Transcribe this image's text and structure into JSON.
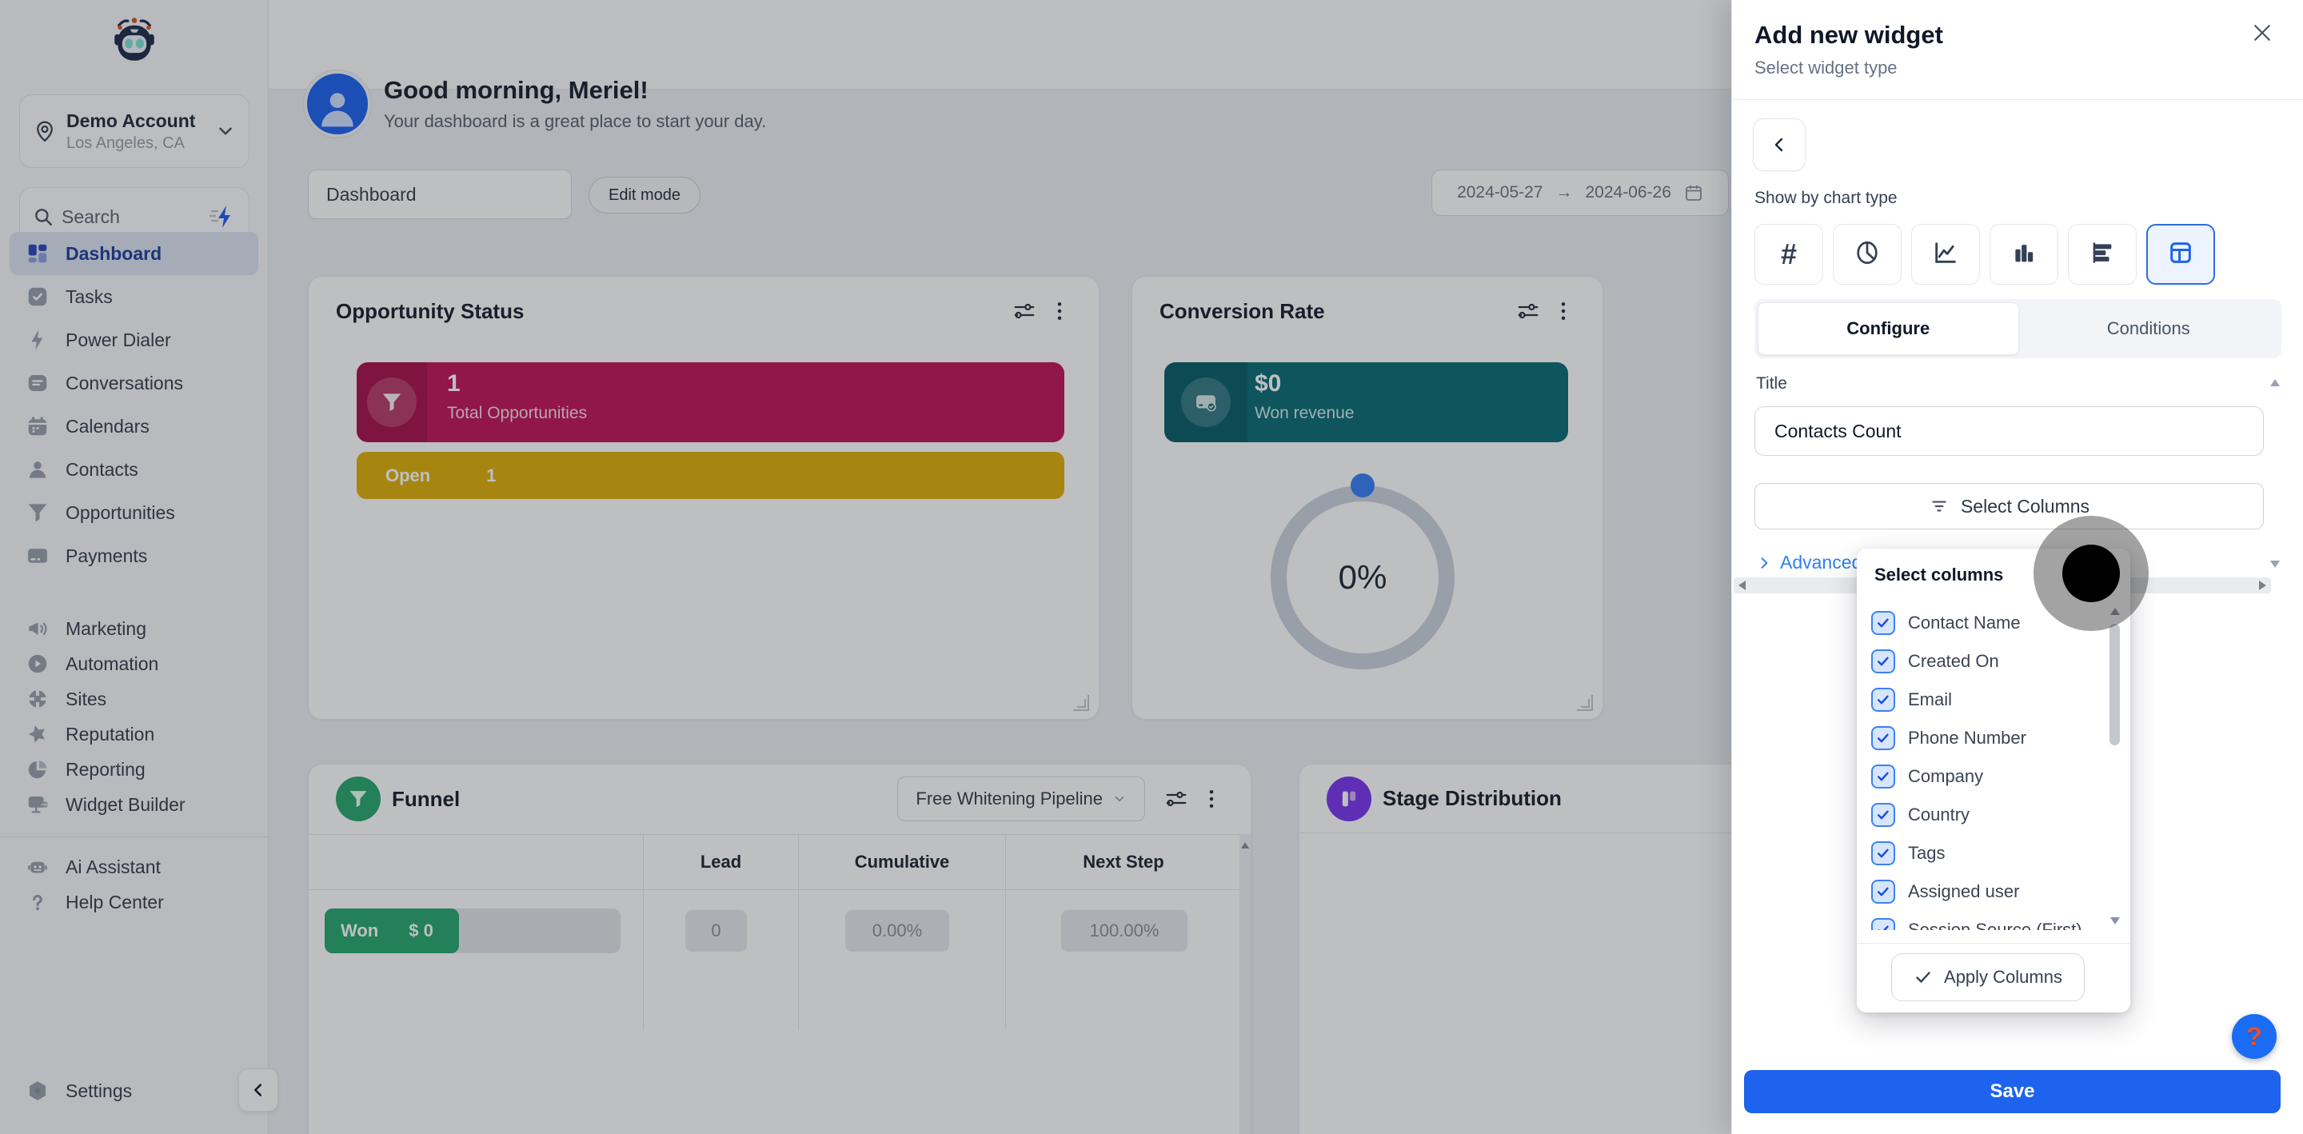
{
  "sidebar": {
    "account": {
      "name": "Demo Account",
      "location": "Los Angeles, CA"
    },
    "search_placeholder": "Search",
    "menu_primary": [
      {
        "icon": "dashboard-icon",
        "label": "Dashboard",
        "active": true
      },
      {
        "icon": "tasks-icon",
        "label": "Tasks"
      },
      {
        "icon": "power-dialer-icon",
        "label": "Power Dialer"
      },
      {
        "icon": "conversations-icon",
        "label": "Conversations"
      },
      {
        "icon": "calendars-icon",
        "label": "Calendars"
      },
      {
        "icon": "contacts-icon",
        "label": "Contacts"
      },
      {
        "icon": "opportunities-icon",
        "label": "Opportunities"
      },
      {
        "icon": "payments-icon",
        "label": "Payments"
      }
    ],
    "menu_secondary": [
      {
        "icon": "marketing-icon",
        "label": "Marketing"
      },
      {
        "icon": "automation-icon",
        "label": "Automation"
      },
      {
        "icon": "sites-icon",
        "label": "Sites"
      },
      {
        "icon": "reputation-icon",
        "label": "Reputation"
      },
      {
        "icon": "reporting-icon",
        "label": "Reporting"
      },
      {
        "icon": "widget-builder-icon",
        "label": "Widget Builder"
      }
    ],
    "menu_tertiary": [
      {
        "icon": "ai-assistant-icon",
        "label": "Ai Assistant"
      },
      {
        "icon": "help-center-icon",
        "label": "Help Center"
      }
    ],
    "settings_label": "Settings"
  },
  "header": {
    "greeting": "Good morning, Meriel!",
    "subtitle": "Your dashboard is a great place to start your day.",
    "dashboard_select": "Dashboard",
    "edit_mode_label": "Edit mode",
    "date_start": "2024-05-27",
    "date_arrow": "→",
    "date_end": "2024-06-26"
  },
  "widgets": {
    "opportunity_status": {
      "title": "Opportunity Status",
      "total_value": "1",
      "total_label": "Total Opportunities",
      "open_label": "Open",
      "open_value": "1"
    },
    "conversion_rate": {
      "title": "Conversion Rate",
      "revenue_value": "$0",
      "revenue_label": "Won revenue",
      "gauge_value": "0%"
    },
    "funnel": {
      "title": "Funnel",
      "pipeline_select": "Free Whitening Pipeline",
      "columns": [
        "Lead",
        "Cumulative",
        "Next Step"
      ],
      "row": {
        "stage": "Won",
        "amount": "$ 0",
        "lead": "0",
        "cumulative": "0.00%",
        "next_step": "100.00%"
      }
    },
    "stage_distribution": {
      "title": "Stage Distribution"
    }
  },
  "panel": {
    "title": "Add new widget",
    "subtitle": "Select widget type",
    "chart_type_label": "Show by chart type",
    "chart_types": [
      {
        "name": "number",
        "selected": false
      },
      {
        "name": "pie",
        "selected": false
      },
      {
        "name": "line",
        "selected": false
      },
      {
        "name": "bar",
        "selected": false
      },
      {
        "name": "horizontal-bar",
        "selected": false
      },
      {
        "name": "table",
        "selected": true
      }
    ],
    "tabs": [
      {
        "label": "Configure",
        "active": true
      },
      {
        "label": "Conditions",
        "active": false
      }
    ],
    "title_label": "Title",
    "title_value": "Contacts Count",
    "select_columns_button": "Select Columns",
    "advanced_link": "Advanced Se",
    "save_button": "Save"
  },
  "columns_dropdown": {
    "title": "Select columns",
    "options": [
      {
        "label": "Contact Name",
        "checked": true
      },
      {
        "label": "Created On",
        "checked": true
      },
      {
        "label": "Email",
        "checked": true
      },
      {
        "label": "Phone Number",
        "checked": true
      },
      {
        "label": "Company",
        "checked": true
      },
      {
        "label": "Country",
        "checked": true
      },
      {
        "label": "Tags",
        "checked": true
      },
      {
        "label": "Assigned user",
        "checked": true
      },
      {
        "label": "Session Source (First)",
        "checked": true
      }
    ],
    "apply_button": "Apply Columns"
  },
  "help_fab_label": "?",
  "colors": {
    "accent_blue": "#1d63ed",
    "crimson": "#c2185b",
    "gold": "#dfb10e",
    "teal": "#0e6e78",
    "green": "#2ba96f",
    "purple": "#7c3aed"
  }
}
